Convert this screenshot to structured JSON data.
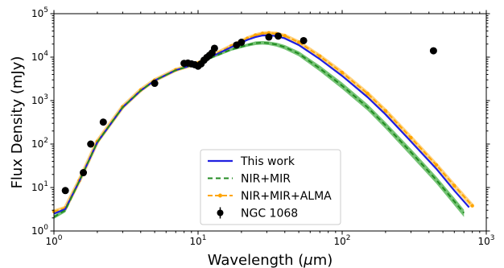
{
  "chart_data": {
    "type": "line",
    "xlabel_prefix": "Wavelength (",
    "xlabel_symbol": "μ",
    "xlabel_suffix": "m)",
    "ylabel": "Flux Density (mJy)",
    "xscale": "log",
    "yscale": "log",
    "xlim": [
      1,
      1000
    ],
    "ylim": [
      1,
      100000
    ],
    "grid": false,
    "legend_placement": "bottom-center",
    "x_ticks": [
      {
        "value": 1,
        "base": "10",
        "exp": "0"
      },
      {
        "value": 10,
        "base": "10",
        "exp": "1"
      },
      {
        "value": 100,
        "base": "10",
        "exp": "2"
      },
      {
        "value": 1000,
        "base": "10",
        "exp": "3"
      }
    ],
    "y_ticks": [
      {
        "value": 1,
        "base": "10",
        "exp": "0"
      },
      {
        "value": 10,
        "base": "10",
        "exp": "1"
      },
      {
        "value": 100,
        "base": "10",
        "exp": "2"
      },
      {
        "value": 1000,
        "base": "10",
        "exp": "3"
      },
      {
        "value": 10000,
        "base": "10",
        "exp": "4"
      },
      {
        "value": 100000,
        "base": "10",
        "exp": "5"
      }
    ],
    "series": [
      {
        "name": "This work",
        "style": "solid",
        "color": "#1f1fe0",
        "x": [
          1,
          1.2,
          1.5,
          2,
          3,
          4,
          5,
          7,
          10,
          13,
          17,
          22,
          25,
          28,
          31,
          35,
          40,
          50,
          70,
          100,
          150,
          200,
          300,
          450,
          600,
          760
        ],
        "y": [
          2.5,
          3.2,
          14,
          110,
          700,
          1700,
          2900,
          5000,
          7200,
          11000,
          17000,
          25000,
          29000,
          31500,
          32000,
          30500,
          27000,
          19000,
          9000,
          3700,
          1200,
          480,
          115,
          27,
          8.5,
          3.5
        ]
      },
      {
        "name": "NIR+MIR",
        "style": "dashed",
        "color": "#228b22",
        "band_color": "#5db85d",
        "x": [
          1,
          1.2,
          1.5,
          2,
          3,
          4,
          5,
          7,
          10,
          13,
          17,
          22,
          25,
          28,
          31,
          35,
          40,
          50,
          70,
          100,
          150,
          200,
          300,
          450,
          600,
          700
        ],
        "y": [
          2.1,
          3.0,
          14,
          110,
          700,
          1700,
          2900,
          5000,
          7200,
          10500,
          15000,
          19000,
          21000,
          21500,
          21000,
          19500,
          17000,
          12000,
          5500,
          2200,
          700,
          270,
          65,
          15,
          4.8,
          2.6
        ],
        "band_lower": [
          1.9,
          2.7,
          12.5,
          100,
          650,
          1600,
          2700,
          4700,
          6800,
          9800,
          14000,
          17500,
          19000,
          19500,
          19000,
          17500,
          15000,
          10500,
          4700,
          1850,
          590,
          225,
          53,
          12.3,
          3.9,
          2.1
        ],
        "band_upper": [
          2.3,
          3.3,
          15.5,
          120,
          750,
          1800,
          3100,
          5300,
          7600,
          11200,
          16000,
          20500,
          23000,
          23500,
          23000,
          21500,
          19000,
          13600,
          6400,
          2600,
          830,
          320,
          78,
          18,
          5.8,
          3.1
        ]
      },
      {
        "name": "NIR+MIR+ALMA",
        "style": "dashdot-marker",
        "color": "#ffa500",
        "band_color": "#ffc04d",
        "x": [
          1,
          1.2,
          1.5,
          2,
          3,
          4,
          5,
          7,
          10,
          13,
          17,
          22,
          25,
          28,
          31,
          35,
          40,
          50,
          70,
          100,
          150,
          200,
          300,
          450,
          600,
          800
        ],
        "y": [
          2.8,
          3.4,
          14.5,
          115,
          720,
          1750,
          2950,
          5100,
          7300,
          11500,
          18000,
          27000,
          32000,
          35000,
          36000,
          34500,
          31000,
          22000,
          10500,
          4400,
          1450,
          580,
          140,
          33,
          11,
          3.8
        ]
      },
      {
        "name": "NGC 1068",
        "style": "errorbar-points",
        "color": "#000000",
        "x": [
          1.2,
          1.6,
          1.8,
          2.2,
          5,
          8,
          8.5,
          9,
          9.5,
          10,
          10.5,
          11,
          11.5,
          12,
          12.5,
          13,
          18.5,
          20,
          31,
          36,
          54,
          430
        ],
        "y": [
          8.5,
          22,
          100,
          320,
          2500,
          7200,
          7300,
          7000,
          6700,
          6200,
          7000,
          8500,
          9800,
          11000,
          12500,
          16000,
          19000,
          22000,
          29000,
          30500,
          24000,
          14000
        ]
      }
    ]
  }
}
